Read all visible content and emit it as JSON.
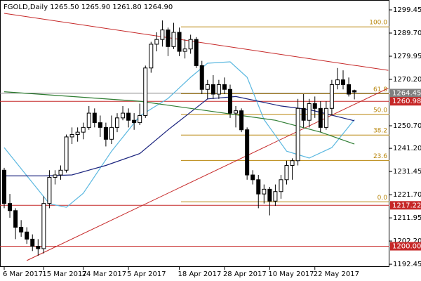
{
  "chart_data": {
    "type": "candlestick",
    "title": "FGOLD,Daily  1265.50 1265.90 1261.80 1264.90",
    "categories": [
      "6 Mar 2017",
      null,
      null,
      null,
      null,
      null,
      null,
      "15 Mar 2017",
      null,
      null,
      null,
      null,
      null,
      null,
      "24 Mar 2017",
      null,
      null,
      null,
      null,
      null,
      null,
      null,
      "5 Apr 2017",
      null,
      null,
      null,
      null,
      null,
      null,
      null,
      null,
      "18 Apr 2017",
      null,
      null,
      null,
      null,
      null,
      null,
      null,
      "28 Apr 2017",
      null,
      null,
      null,
      null,
      null,
      null,
      null,
      "10 May 2017",
      null,
      null,
      null,
      null,
      null,
      null,
      null,
      "22 May 2017",
      null,
      null,
      null,
      null,
      null,
      null,
      null
    ],
    "open": [
      1232,
      1218,
      1215,
      1208,
      1206,
      1203,
      1200,
      1199,
      1218,
      1229,
      1230,
      1232,
      1246,
      1247,
      1248,
      1250,
      1256,
      1252,
      1250,
      1245,
      1250,
      1254,
      1256,
      1253,
      1252,
      1255,
      1275,
      1285,
      1287,
      1291,
      1284,
      1290,
      1282,
      1283,
      1287,
      1276,
      1266,
      1268,
      1264,
      1268,
      1266,
      1256,
      1257,
      1249,
      1230,
      1228,
      1222,
      1224,
      1219,
      1223,
      1228,
      1234,
      1236,
      1258,
      1253,
      1260,
      1258,
      1250,
      1258,
      1268,
      1270,
      1268,
      1265.5
    ],
    "high": [
      1233,
      1222,
      1216,
      1211,
      1208,
      1205,
      1203,
      1221,
      1232,
      1232,
      1234,
      1247,
      1250,
      1250,
      1252,
      1259,
      1258,
      1255,
      1252,
      1255,
      1256,
      1259,
      1258,
      1256,
      1260,
      1276,
      1286,
      1290,
      1295,
      1292,
      1294,
      1292,
      1287,
      1289,
      1288,
      1278,
      1270,
      1272,
      1270,
      1271,
      1268,
      1259,
      1258,
      1250,
      1232,
      1230,
      1226,
      1225,
      1226,
      1230,
      1236,
      1237,
      1262,
      1264,
      1262,
      1263,
      1261,
      1261,
      1270,
      1275,
      1274,
      1271,
      1265.9
    ],
    "low": [
      1216,
      1212,
      1203,
      1204,
      1201,
      1198,
      1196,
      1197,
      1216,
      1226,
      1228,
      1231,
      1243,
      1244,
      1245,
      1249,
      1250,
      1246,
      1242,
      1243,
      1248,
      1253,
      1250,
      1249,
      1251,
      1254,
      1273,
      1282,
      1284,
      1280,
      1283,
      1280,
      1279,
      1281,
      1275,
      1264,
      1262,
      1262,
      1262,
      1264,
      1254,
      1250,
      1248,
      1228,
      1226,
      1216,
      1218,
      1213,
      1217,
      1220,
      1226,
      1228,
      1234,
      1250,
      1250,
      1254,
      1248,
      1249,
      1255,
      1266,
      1266,
      1263,
      1261.8
    ],
    "close": [
      1218,
      1215,
      1208,
      1206,
      1203,
      1200,
      1199,
      1218,
      1229,
      1230,
      1232,
      1246,
      1247,
      1248,
      1250,
      1256,
      1252,
      1250,
      1245,
      1250,
      1254,
      1256,
      1253,
      1252,
      1255,
      1275,
      1285,
      1287,
      1291,
      1284,
      1290,
      1282,
      1283,
      1287,
      1276,
      1266,
      1268,
      1264,
      1268,
      1266,
      1256,
      1257,
      1249,
      1230,
      1228,
      1222,
      1224,
      1219,
      1223,
      1228,
      1234,
      1236,
      1258,
      1253,
      1260,
      1258,
      1250,
      1258,
      1268,
      1270,
      1268,
      1264,
      1264.9
    ],
    "ylim": [
      1191.3,
      1303.6
    ],
    "yticks": [
      1299.45,
      {
        "value": 1289.7,
        "label": "1289.70"
      },
      1279.95,
      {
        "value": 1270.2,
        "label": "1270.20"
      },
      {
        "value": 1250.7,
        "label": "1250.70"
      },
      {
        "value": 1241.2,
        "label": "1241.20"
      },
      1231.45,
      {
        "value": 1221.7,
        "label": "1221.70"
      },
      1211.95,
      {
        "value": 1202.2,
        "label": "1202.20"
      },
      1192.45
    ],
    "overlays": [
      {
        "color": "#5bb8e0",
        "x": [
          0,
          4,
          8,
          11,
          14,
          19,
          24,
          29,
          33,
          36,
          40,
          43,
          46,
          50,
          54,
          58,
          62
        ],
        "values": [
          1241.5,
          1229.7,
          1217.9,
          1216.4,
          1222.3,
          1240,
          1254.8,
          1262.2,
          1271.1,
          1277,
          1277.6,
          1271.1,
          1253.3,
          1240,
          1237.1,
          1241.5,
          1253.3
        ]
      },
      {
        "color": "#1a237e",
        "x": [
          0,
          7,
          12,
          18,
          24,
          29,
          36,
          41,
          49,
          54,
          62
        ],
        "values": [
          1229.6,
          1229.6,
          1230,
          1234,
          1239,
          1249,
          1262,
          1263,
          1259,
          1257.5,
          1252.8
        ]
      },
      {
        "color": "#2e7d32",
        "x": [
          0,
          12,
          24,
          36,
          48,
          56,
          62
        ],
        "values": [
          1265,
          1263,
          1261,
          1257,
          1253,
          1248,
          1243
        ]
      }
    ],
    "trendlines": [
      {
        "color": "#c62828",
        "x": [
          0,
          68
        ],
        "values": [
          1298,
          1274
        ]
      },
      {
        "color": "#c62828",
        "x": [
          4,
          68
        ],
        "values": [
          1194,
          1266.5
        ]
      }
    ],
    "hlines": [
      {
        "value": 1264.45,
        "color": "#808080"
      },
      {
        "value": 1260.98,
        "color": "#c62828"
      },
      {
        "value": 1217.22,
        "color": "#c62828"
      },
      {
        "value": 1200,
        "label": "1200.00",
        "color": "#c62828"
      }
    ],
    "fib_levels": [
      {
        "label": "100.0",
        "price": 1292.3
      },
      {
        "label": "61.8",
        "price": 1264.2
      },
      {
        "label": "50.0",
        "price": 1255.5
      },
      {
        "label": "38.2",
        "price": 1246.8
      },
      {
        "label": "23.6",
        "price": 1236.1
      },
      {
        "label": "0.0",
        "price": 1218.7
      }
    ],
    "fib_color": "#b8860b"
  }
}
